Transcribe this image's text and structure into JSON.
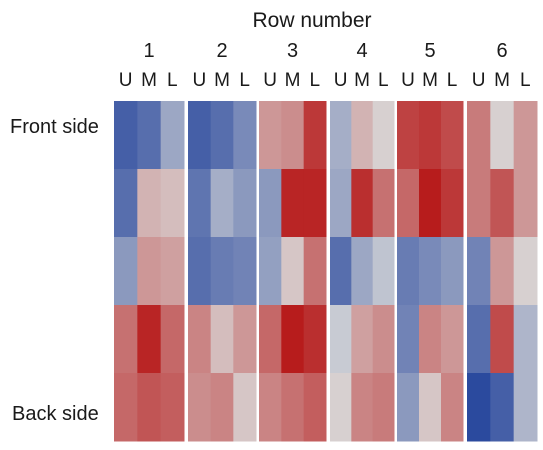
{
  "chart_data": {
    "type": "heatmap",
    "title": "Row number",
    "row_labels": [
      "Front side",
      "",
      "",
      "",
      "Back side"
    ],
    "column_positions": [
      "U",
      "M",
      "L"
    ],
    "groups": [
      {
        "label": "1",
        "values": [
          [
            -0.85,
            -0.75,
            -0.35
          ],
          [
            -0.75,
            0.2,
            0.15
          ],
          [
            -0.45,
            0.35,
            0.3
          ],
          [
            0.55,
            0.95,
            0.6
          ],
          [
            0.6,
            0.7,
            0.65
          ]
        ]
      },
      {
        "label": "2",
        "values": [
          [
            -0.85,
            -0.75,
            -0.55
          ],
          [
            -0.7,
            -0.3,
            -0.45
          ],
          [
            -0.75,
            -0.65,
            -0.6
          ],
          [
            0.45,
            0.15,
            0.35
          ],
          [
            0.4,
            0.45,
            0.1
          ]
        ]
      },
      {
        "label": "3",
        "values": [
          [
            0.35,
            0.4,
            0.85
          ],
          [
            -0.45,
            0.95,
            0.95
          ],
          [
            -0.4,
            0.1,
            0.55
          ],
          [
            0.6,
            1.0,
            0.9
          ],
          [
            0.45,
            0.55,
            0.65
          ]
        ]
      },
      {
        "label": "4",
        "values": [
          [
            -0.3,
            0.2,
            0.05
          ],
          [
            -0.35,
            0.9,
            0.55
          ],
          [
            -0.75,
            -0.35,
            -0.15
          ],
          [
            -0.1,
            0.3,
            0.4
          ],
          [
            0.05,
            0.45,
            0.5
          ]
        ]
      },
      {
        "label": "5",
        "values": [
          [
            0.8,
            0.85,
            0.75
          ],
          [
            0.6,
            1.0,
            0.85
          ],
          [
            -0.65,
            -0.55,
            -0.45
          ],
          [
            -0.6,
            0.45,
            0.35
          ],
          [
            -0.45,
            0.1,
            0.45
          ]
        ]
      },
      {
        "label": "6",
        "values": [
          [
            0.5,
            0.05,
            0.35
          ],
          [
            0.5,
            0.7,
            0.35
          ],
          [
            -0.6,
            0.35,
            0.05
          ],
          [
            -0.75,
            0.75,
            -0.25
          ],
          [
            -1.0,
            -0.85,
            -0.25
          ]
        ]
      }
    ],
    "colors": {
      "negative": "#2b4a9e",
      "neutral": "#d9d9d9",
      "positive": "#b71c1c"
    }
  }
}
